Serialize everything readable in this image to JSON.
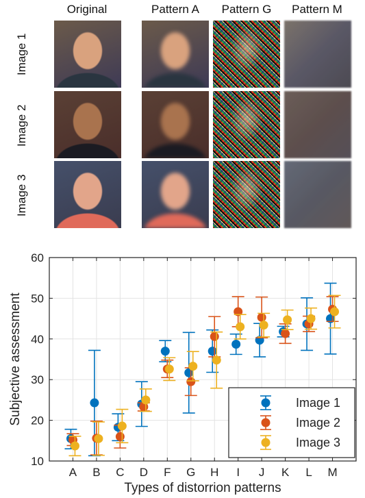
{
  "thumbnails": {
    "columns": [
      "Original",
      "Pattern A",
      "Pattern G",
      "Pattern M"
    ],
    "rows": [
      "Image 1",
      "Image 2",
      "Image 3"
    ]
  },
  "chart_data": {
    "type": "scatter",
    "xlabel": "Types of distorrion patterns",
    "ylabel": "Subjective assessment",
    "categories": [
      "A",
      "B",
      "C",
      "D",
      "F",
      "G",
      "H",
      "I",
      "J",
      "K",
      "L",
      "M"
    ],
    "ylim": [
      10,
      60
    ],
    "yticks": [
      10,
      20,
      30,
      40,
      50,
      60
    ],
    "grid": true,
    "legend_position": "bottom-right",
    "series": [
      {
        "name": "Image 1",
        "color": "#0072BD",
        "values": [
          15.5,
          24.3,
          18.3,
          24.0,
          37.0,
          31.7,
          37.0,
          38.7,
          39.7,
          41.8,
          43.7,
          45.0
        ],
        "err_low": [
          13.0,
          11.3,
          15.0,
          18.5,
          34.4,
          21.8,
          31.8,
          36.2,
          35.6,
          40.5,
          37.2,
          36.3
        ],
        "err_high": [
          17.8,
          37.2,
          21.6,
          29.5,
          39.6,
          41.6,
          42.2,
          41.2,
          43.8,
          43.1,
          50.1,
          53.7
        ]
      },
      {
        "name": "Image 2",
        "color": "#D95319",
        "values": [
          15.2,
          15.6,
          16.0,
          23.3,
          32.6,
          29.5,
          40.6,
          46.7,
          45.3,
          41.3,
          43.7,
          47.3
        ],
        "err_low": [
          13.8,
          11.5,
          13.2,
          22.3,
          30.5,
          26.1,
          35.6,
          43.0,
          40.3,
          38.9,
          41.8,
          44.3
        ],
        "err_high": [
          16.7,
          19.8,
          18.8,
          24.3,
          34.8,
          32.9,
          45.5,
          50.4,
          50.3,
          43.7,
          45.6,
          50.4
        ]
      },
      {
        "name": "Image 3",
        "color": "#EDB120",
        "values": [
          13.7,
          15.5,
          18.6,
          25.0,
          32.6,
          33.3,
          34.8,
          43.0,
          43.4,
          44.7,
          45.0,
          46.7
        ],
        "err_low": [
          11.3,
          11.4,
          14.5,
          22.2,
          29.8,
          29.7,
          27.9,
          40.0,
          40.5,
          42.3,
          42.4,
          42.7
        ],
        "err_high": [
          16.1,
          19.6,
          22.7,
          27.7,
          35.4,
          36.9,
          41.7,
          46.0,
          46.3,
          47.1,
          47.6,
          50.7
        ]
      }
    ]
  }
}
